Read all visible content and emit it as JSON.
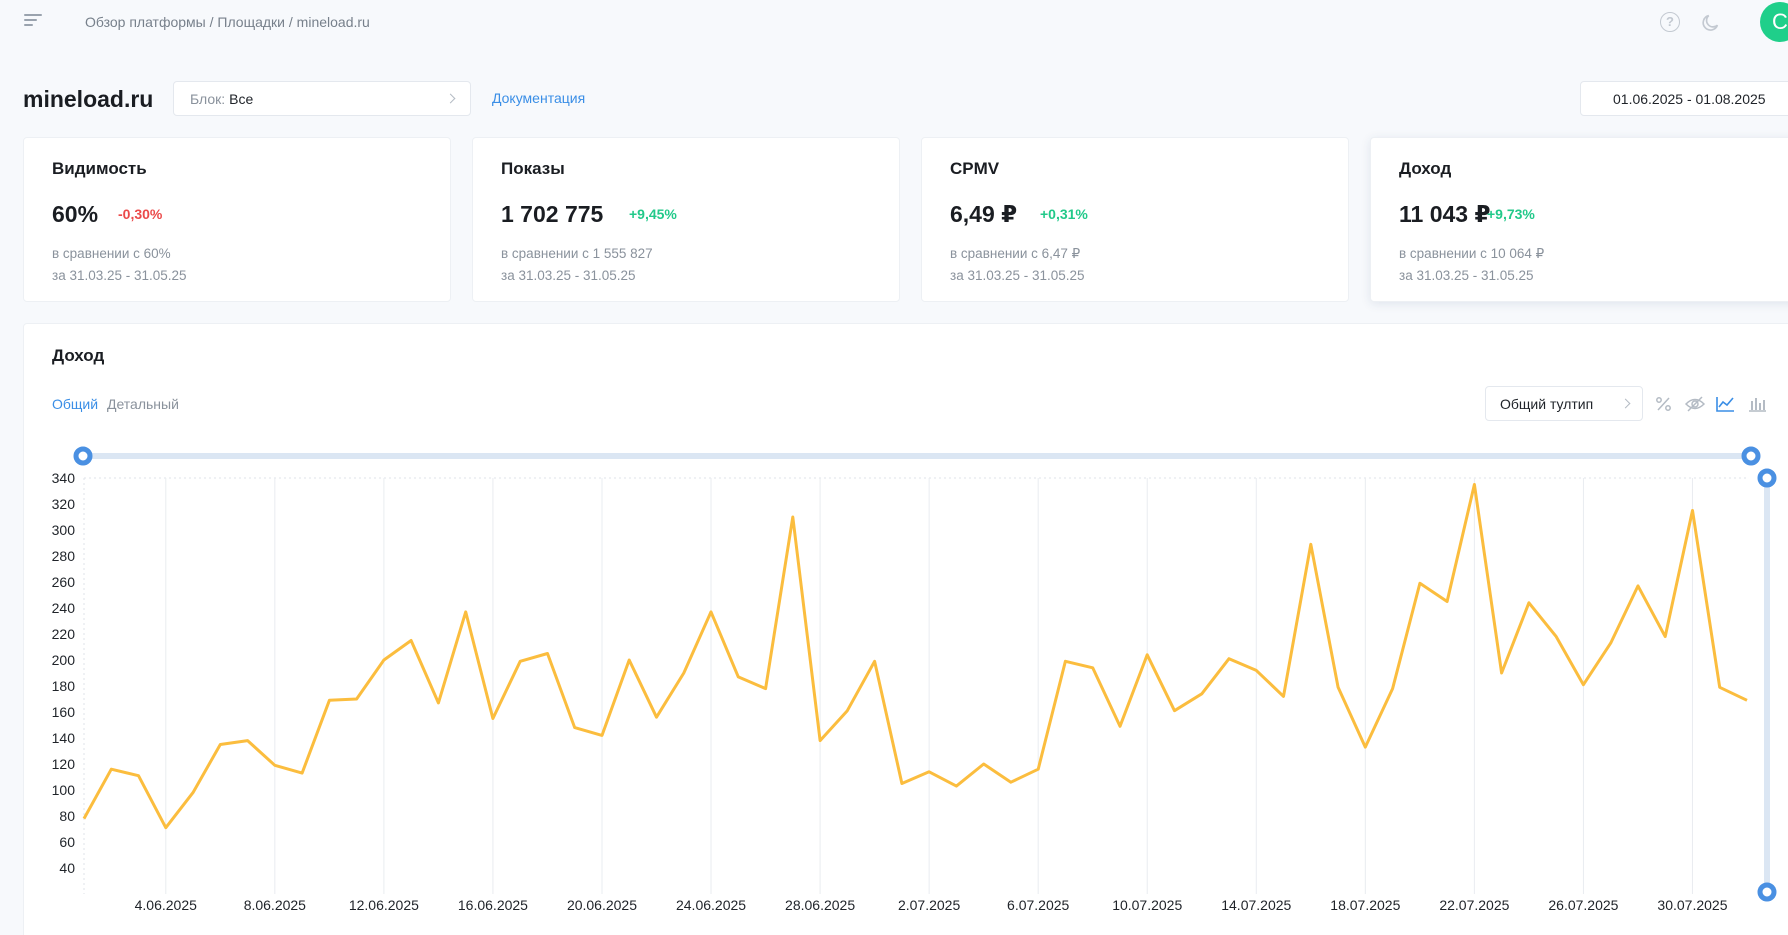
{
  "header": {
    "breadcrumb": "Обзор платформы / Площадки / mineload.ru",
    "avatar_letter": "C",
    "icons": [
      "menu-icon",
      "help-icon",
      "moon-icon"
    ]
  },
  "site": {
    "title": "mineload.ru",
    "block_label": "Блок:",
    "block_value": "Все",
    "doc_link": "Документация",
    "date_range": "01.06.2025 - 01.08.2025"
  },
  "cards": [
    {
      "title": "Видимость",
      "value": "60%",
      "delta": "-0,30%",
      "compare": "в сравнении с 60%",
      "period": "за 31.03.25 - 31.05.25"
    },
    {
      "title": "Показы",
      "value": "1 702 775",
      "delta": "+9,45%",
      "compare": "в сравнении с 1 555 827",
      "period": "за 31.03.25 - 31.05.25"
    },
    {
      "title": "CPMV",
      "value": "6,49 ₽",
      "delta": "+0,31%",
      "compare": "в сравнении с 6,47 ₽",
      "period": "за 31.03.25 - 31.05.25"
    },
    {
      "title": "Доход",
      "value": "11 043 ₽",
      "delta": "+9,73%",
      "compare": "в сравнении с 10 064 ₽",
      "period": "за 31.03.25 - 31.05.25"
    }
  ],
  "panel": {
    "title": "Доход",
    "tab_general": "Общий",
    "tab_detailed": "Детальный",
    "tooltip_select": "Общий тултип",
    "tools": [
      "percent-icon",
      "eye-off-icon",
      "line-chart-icon",
      "bar-chart-icon"
    ],
    "line_color": "#fbbd3e",
    "slider_color": "#4a90e2"
  },
  "chart_data": {
    "type": "line",
    "title": "",
    "xlabel": "",
    "ylabel": "",
    "ylim": [
      20,
      340
    ],
    "yticks": [
      40,
      60,
      80,
      100,
      120,
      140,
      160,
      180,
      200,
      220,
      240,
      260,
      280,
      300,
      320,
      340
    ],
    "x_tick_labels": [
      "4.06.2025",
      "8.06.2025",
      "12.06.2025",
      "16.06.2025",
      "20.06.2025",
      "24.06.2025",
      "28.06.2025",
      "2.07.2025",
      "6.07.2025",
      "10.07.2025",
      "14.07.2025",
      "18.07.2025",
      "22.07.2025",
      "26.07.2025",
      "30.07.2025"
    ],
    "x_tick_start_index": 3,
    "x_tick_every": 4,
    "grid": true,
    "series": [
      {
        "values": [
          78,
          116,
          111,
          71,
          98,
          135,
          138,
          119,
          113,
          169,
          170,
          200,
          215,
          167,
          237,
          155,
          199,
          205,
          148,
          142,
          200,
          156,
          190,
          237,
          187,
          178,
          310,
          138,
          161,
          199,
          105,
          114,
          103,
          120,
          106,
          116,
          199,
          194,
          149,
          204,
          161,
          174,
          201,
          192,
          172,
          289,
          179,
          133,
          178,
          259,
          245,
          335,
          190,
          244,
          218,
          181,
          213,
          257,
          218,
          315,
          179,
          169
        ]
      }
    ]
  }
}
